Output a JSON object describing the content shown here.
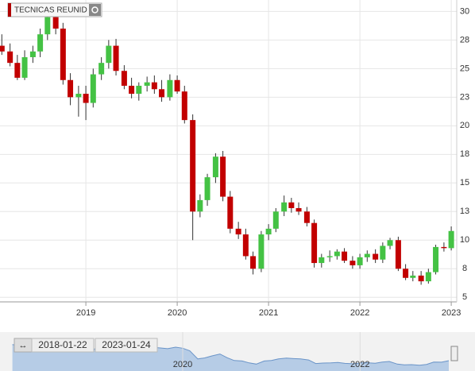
{
  "chart_data": {
    "type": "candlestick",
    "title": "TECNICAS REUNID",
    "colors": {
      "up": "#44c244",
      "down": "#c20000",
      "wick": "#333333"
    },
    "x": [
      2018.08,
      2018.17,
      2018.25,
      2018.33,
      2018.42,
      2018.5,
      2018.58,
      2018.67,
      2018.75,
      2018.83,
      2018.92,
      2019.0,
      2019.08,
      2019.17,
      2019.25,
      2019.33,
      2019.42,
      2019.5,
      2019.58,
      2019.67,
      2019.75,
      2019.83,
      2019.92,
      2020.0,
      2020.08,
      2020.17,
      2020.25,
      2020.33,
      2020.42,
      2020.5,
      2020.58,
      2020.67,
      2020.75,
      2020.83,
      2020.92,
      2021.0,
      2021.08,
      2021.17,
      2021.25,
      2021.33,
      2021.42,
      2021.5,
      2021.58,
      2021.67,
      2021.75,
      2021.83,
      2021.92,
      2022.0,
      2022.08,
      2022.17,
      2022.25,
      2022.33,
      2022.42,
      2022.5,
      2022.58,
      2022.67,
      2022.75,
      2022.83,
      2022.92,
      2023.0
    ],
    "open": [
      27,
      26.5,
      25.5,
      24.2,
      26,
      26.5,
      28,
      29.5,
      28.5,
      24,
      22.5,
      22.8,
      22,
      24.5,
      25.5,
      27,
      24.8,
      23.5,
      22.8,
      23.5,
      23.8,
      23.2,
      22.5,
      24,
      23,
      20.5,
      12.5,
      13.5,
      15.5,
      17.3,
      13.8,
      11,
      10.5,
      8.6,
      7.5,
      10.5,
      11,
      12.5,
      13.3,
      12.8,
      12.5,
      11.5,
      8,
      8.5,
      8.6,
      9,
      8.2,
      7.8,
      8.5,
      8.8,
      8.3,
      9.5,
      10,
      7.5,
      6.7,
      6.9,
      6.4,
      7.2,
      9.4,
      9.3
    ],
    "high": [
      28,
      27.2,
      26.2,
      26.6,
      27,
      28.5,
      30.2,
      30,
      29,
      24.6,
      23.5,
      23.5,
      25,
      26,
      27.5,
      27.6,
      25.3,
      24.2,
      23.8,
      24.3,
      24.4,
      24,
      24.5,
      24.4,
      23.5,
      21,
      14,
      15.8,
      17.6,
      17.8,
      14.3,
      11.6,
      11,
      9,
      10.8,
      11.4,
      12.8,
      13.9,
      13.7,
      13.3,
      12.9,
      11.8,
      8.8,
      9.1,
      9.2,
      9.3,
      8.6,
      8.8,
      9.1,
      9.2,
      9.8,
      10.2,
      10.3,
      7.9,
      7.3,
      7.3,
      7.5,
      9.6,
      9.8,
      11.2
    ],
    "low": [
      26.2,
      25.2,
      24,
      24,
      25.5,
      26,
      27.5,
      28,
      23.6,
      21.8,
      20.8,
      20.5,
      21.6,
      24,
      25,
      24.4,
      23.2,
      22.4,
      22.2,
      23,
      22.8,
      22.1,
      22.2,
      22.8,
      20.2,
      10,
      12,
      13,
      15,
      13.4,
      10.6,
      10.1,
      8.3,
      7,
      7.2,
      10,
      10.7,
      12.1,
      12.4,
      12.2,
      11.2,
      7.6,
      7.6,
      8.1,
      8.3,
      8,
      7.5,
      7.5,
      8.1,
      8,
      8,
      9.2,
      7.3,
      6.5,
      6.4,
      6.1,
      6.2,
      7,
      9,
      9.1
    ],
    "close": [
      26.5,
      25.5,
      24.2,
      26,
      26.5,
      28,
      29.5,
      28.5,
      24,
      22.5,
      22.8,
      22,
      24.5,
      25.5,
      27,
      24.8,
      23.5,
      22.8,
      23.5,
      23.8,
      23.2,
      22.5,
      24,
      23,
      20.5,
      12.5,
      13.5,
      15.5,
      17.3,
      13.8,
      11,
      10.5,
      8.6,
      7.5,
      10.5,
      11,
      12.5,
      13.3,
      12.8,
      12.5,
      11.5,
      8,
      8.5,
      8.6,
      9,
      8.2,
      7.8,
      8.5,
      8.8,
      8.3,
      9.5,
      10,
      7.5,
      6.7,
      6.9,
      6.4,
      7.2,
      9.4,
      9.3,
      10.8
    ],
    "xlim": [
      2018.06,
      2023.06
    ],
    "xticks": [
      2019,
      2020,
      2021,
      2022,
      2023
    ],
    "ylim": [
      4.6,
      31
    ],
    "yticks": [
      5,
      {
        "value": 7.5,
        "label": "8"
      },
      10,
      {
        "value": 12.5,
        "label": "13"
      },
      15,
      {
        "value": 17.5,
        "label": "18"
      },
      20,
      {
        "value": 22.5,
        "label": "23"
      },
      25,
      {
        "value": 27.5,
        "label": "28"
      },
      30
    ],
    "grid": true,
    "navigator": {
      "from": "2018-01-22",
      "to": "2023-01-24",
      "xlim": [
        2017.94,
        2023.09
      ],
      "xticks": [
        2020,
        2022
      ]
    }
  }
}
